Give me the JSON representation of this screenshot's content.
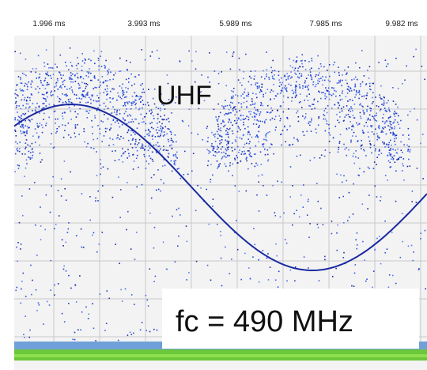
{
  "axis": {
    "ticks": [
      "1.996 ms",
      "3.993 ms",
      "5.989 ms",
      "7.985 ms",
      "9.982 ms"
    ]
  },
  "labels": {
    "band": "UHF",
    "center_frequency": "fc = 490 MHz"
  }
}
